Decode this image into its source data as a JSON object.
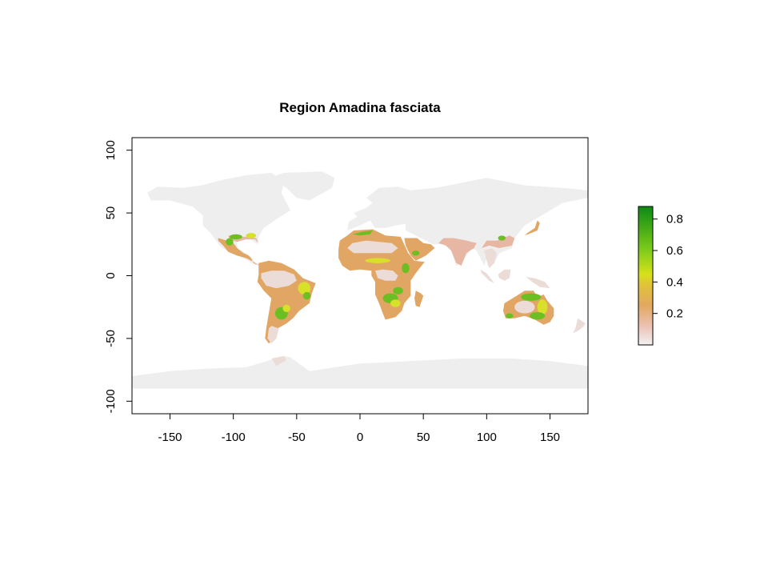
{
  "title": "Region Amadina fasciata",
  "axes": {
    "x_ticks": [
      {
        "value": -150,
        "label": "-150"
      },
      {
        "value": -100,
        "label": "-100"
      },
      {
        "value": -50,
        "label": "-50"
      },
      {
        "value": 0,
        "label": "0"
      },
      {
        "value": 50,
        "label": "50"
      },
      {
        "value": 100,
        "label": "100"
      },
      {
        "value": 150,
        "label": "150"
      }
    ],
    "y_ticks": [
      {
        "value": 100,
        "label": "100"
      },
      {
        "value": 50,
        "label": "50"
      },
      {
        "value": 0,
        "label": "0"
      },
      {
        "value": -50,
        "label": "-50"
      },
      {
        "value": -100,
        "label": "-100"
      }
    ],
    "xlim": [
      -180,
      180
    ],
    "ylim": [
      -110,
      110
    ]
  },
  "legend": {
    "placement": "right",
    "range": [
      0,
      0.88
    ],
    "ticks": [
      {
        "value": 0.8,
        "label": "0.8"
      },
      {
        "value": 0.6,
        "label": "0.6"
      },
      {
        "value": 0.4,
        "label": "0.4"
      },
      {
        "value": 0.2,
        "label": "0.2"
      }
    ],
    "gradient_stops": [
      {
        "value": 0.0,
        "color": "#f2f2f2"
      },
      {
        "value": 0.12,
        "color": "#ecc1b4"
      },
      {
        "value": 0.25,
        "color": "#e2a860"
      },
      {
        "value": 0.38,
        "color": "#e0c23a"
      },
      {
        "value": 0.45,
        "color": "#d6e01a"
      },
      {
        "value": 0.6,
        "color": "#7fcc1a"
      },
      {
        "value": 0.88,
        "color": "#0d8a14"
      }
    ]
  },
  "colors": {
    "low": "#eeeeee",
    "land_faint": "#ecdcd8",
    "pink": "#e8b7a4",
    "tan": "#e2a664",
    "yellow": "#d8e02a",
    "green": "#6cbf22",
    "dark_green": "#1f9a22"
  }
}
